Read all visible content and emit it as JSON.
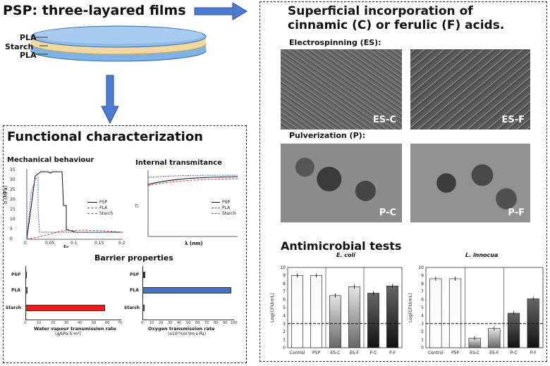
{
  "title": "PSP: three-layared films",
  "layers": {
    "top": "PLA",
    "middle": "Starch",
    "bottom": "PLA"
  },
  "functional": {
    "title": "Functional characterization",
    "mech": {
      "title": "Mechanical behaviour",
      "ylabel": "σ (MPa)",
      "xlabel": "εₑ",
      "yticks": [
        "35",
        "30",
        "25",
        "20",
        "15",
        "10",
        "5",
        "0"
      ],
      "xticks": [
        "0",
        "0.05",
        "0.1",
        "0.15",
        "0.2"
      ],
      "legend": [
        "PSP",
        "PLA",
        "Starch"
      ]
    },
    "trans": {
      "title": "Internal transmitance",
      "ylabel": "Ti",
      "xlabel": "λ (nm)",
      "legend": [
        "PSP",
        "PLA",
        "Starch"
      ]
    },
    "barrier": {
      "title": "Barrier properties",
      "categories": [
        "PSP",
        "PLA",
        "Starch"
      ],
      "wvtr_label": "Water vapour transmission rate",
      "wvtr_unit": "(g/kPa·h·m²)",
      "wvtr_ticks": [
        "0",
        "10",
        "20",
        "30",
        "40",
        "50",
        "60",
        "70"
      ],
      "otr_label": "Oxygen transmission rate",
      "otr_unit": "(x10¹⁴cm³/m·s·Pa)",
      "otr_ticks": [
        "0",
        "10",
        "20",
        "30",
        "40",
        "50",
        "60",
        "70",
        "80",
        "90",
        "100"
      ]
    }
  },
  "superficial": {
    "title_line1": "Superficial incorporation of",
    "title_line2": "cinnamic (C) or ferulic (F) acids.",
    "es_label": "Electrospinning (ES):",
    "p_label": "Pulverization (P):",
    "images": [
      "ES-C",
      "ES-F",
      "P-C",
      "P-F"
    ]
  },
  "antimicrobial": {
    "title": "Antimicrobial tests",
    "ylabel": "Log(CFU/mL)",
    "yticks": [
      "10",
      "9",
      "8",
      "7",
      "6",
      "5",
      "4",
      "3",
      "2",
      "1",
      "0"
    ]
  },
  "colors": {
    "bar_red": "#e8211b",
    "bar_blue": "#4472c4",
    "bar_dark": "#333333",
    "disk_blue": "#7fb2e5",
    "disk_tan": "#f3d9a0",
    "arrow": "#4a7ad1"
  },
  "chart_data": [
    {
      "type": "bar",
      "title": "E. coli",
      "ylabel": "Log(CFU/mL)",
      "categories": [
        "Control",
        "PSP",
        "ES-C",
        "ES-F",
        "P-C",
        "P-F"
      ],
      "values": [
        9.0,
        9.0,
        6.5,
        7.6,
        6.8,
        7.7
      ],
      "ylim": [
        0,
        10
      ],
      "reference_line": 3
    },
    {
      "type": "bar",
      "title": "L. innocua",
      "ylabel": "Log(CFU/mL)",
      "categories": [
        "Control",
        "PSP",
        "ES-C",
        "ES-F",
        "P-C",
        "P-F"
      ],
      "values": [
        8.6,
        8.6,
        1.2,
        2.4,
        4.3,
        6.1
      ],
      "ylim": [
        0,
        10
      ],
      "reference_line": 3
    },
    {
      "type": "bar",
      "title": "",
      "xlabel": "Water vapour transmission rate",
      "categories": [
        "PSP",
        "PLA",
        "Starch"
      ],
      "values": [
        0.3,
        1.5,
        58
      ],
      "xlim": [
        0,
        70
      ]
    },
    {
      "type": "bar",
      "title": "",
      "xlabel": "Oxygen transmission rate",
      "categories": [
        "PSP",
        "PLA",
        "Starch"
      ],
      "values": [
        3,
        97,
        2
      ],
      "xlim": [
        0,
        100
      ]
    }
  ]
}
